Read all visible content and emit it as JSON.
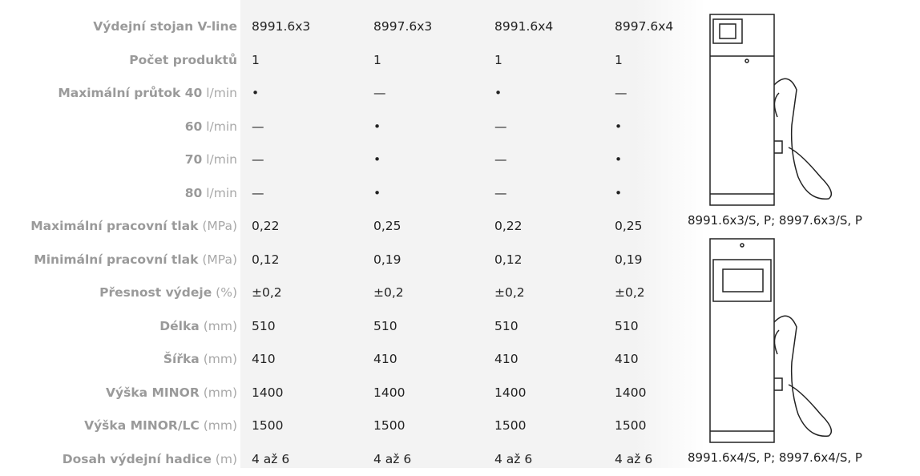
{
  "table": {
    "rows": [
      {
        "label": "Výdejní stojan V-line",
        "cells": [
          "8991.6x3",
          "8997.6x3",
          "8991.6x4",
          "8997.6x4"
        ]
      },
      {
        "label": "Počet produktů",
        "cells": [
          "1",
          "1",
          "1",
          "1"
        ]
      },
      {
        "label": "Maximální průtok 40",
        "unit": "l/min",
        "cells": [
          "•",
          "—",
          "•",
          "—"
        ]
      },
      {
        "label": "60",
        "unit": "l/min",
        "cells": [
          "—",
          "•",
          "—",
          "•"
        ]
      },
      {
        "label": "70",
        "unit": "l/min",
        "cells": [
          "—",
          "•",
          "—",
          "•"
        ]
      },
      {
        "label": "80",
        "unit": "l/min",
        "cells": [
          "—",
          "•",
          "—",
          "•"
        ]
      },
      {
        "label": "Maximální pracovní tlak",
        "unit": "(MPa)",
        "cells": [
          "0,22",
          "0,25",
          "0,22",
          "0,25"
        ]
      },
      {
        "label": "Minimální pracovní tlak",
        "unit": "(MPa)",
        "cells": [
          "0,12",
          "0,19",
          "0,12",
          "0,19"
        ]
      },
      {
        "label": "Přesnost výdeje",
        "unit": "(%)",
        "cells": [
          "±0,2",
          "±0,2",
          "±0,2",
          "±0,2"
        ]
      },
      {
        "label": "Délka",
        "unit": "(mm)",
        "cells": [
          "510",
          "510",
          "510",
          "510"
        ]
      },
      {
        "label": "Šířka",
        "unit": "(mm)",
        "cells": [
          "410",
          "410",
          "410",
          "410"
        ]
      },
      {
        "label": "Výška MINOR",
        "unit": "(mm)",
        "cells": [
          "1400",
          "1400",
          "1400",
          "1400"
        ]
      },
      {
        "label": "Výška MINOR/LC",
        "unit": "(mm)",
        "cells": [
          "1500",
          "1500",
          "1500",
          "1500"
        ]
      },
      {
        "label": "Dosah výdejní hadice",
        "unit": "(m)",
        "cells": [
          "4 až 6",
          "4 až 6",
          "4 až 6",
          "4 až 6"
        ]
      }
    ]
  },
  "images": [
    {
      "caption": "8991.6x3/S, P; 8997.6x3/S, P"
    },
    {
      "caption": "8991.6x4/S, P; 8997.6x4/S, P"
    }
  ]
}
